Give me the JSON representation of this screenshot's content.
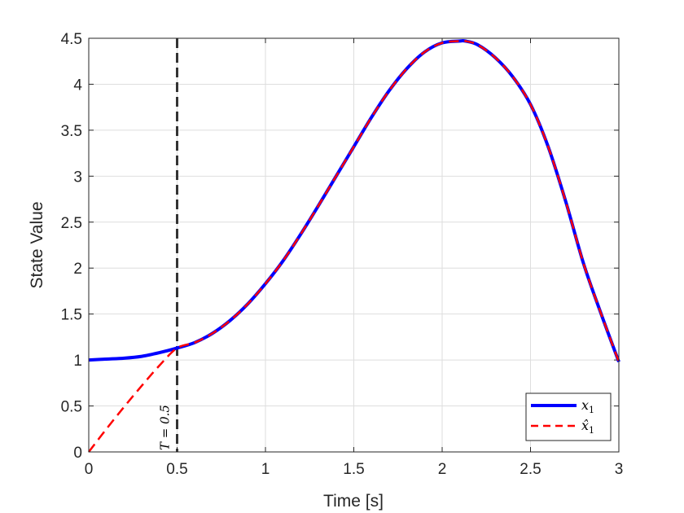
{
  "chart_data": {
    "type": "line",
    "xlabel": "Time [s]",
    "ylabel": "State Value",
    "xlim": [
      0,
      3
    ],
    "ylim": [
      0,
      4.5
    ],
    "xticks": [
      0,
      0.5,
      1,
      1.5,
      2,
      2.5,
      3
    ],
    "yticks": [
      0,
      0.5,
      1,
      1.5,
      2,
      2.5,
      3,
      3.5,
      4,
      4.5
    ],
    "xtick_labels": [
      "0",
      "0.5",
      "1",
      "1.5",
      "2",
      "2.5",
      "3"
    ],
    "ytick_labels": [
      "0",
      "0.5",
      "1",
      "1.5",
      "2",
      "2.5",
      "3",
      "3.5",
      "4",
      "4.5"
    ],
    "grid": true,
    "legend_position": "bottom-right",
    "series": [
      {
        "name": "x_1",
        "color": "#0000ff",
        "style": "solid",
        "x": [
          0,
          0.1,
          0.2,
          0.3,
          0.4,
          0.5,
          0.6,
          0.7,
          0.8,
          0.9,
          1.0,
          1.1,
          1.2,
          1.3,
          1.4,
          1.5,
          1.6,
          1.7,
          1.8,
          1.9,
          2.0,
          2.1,
          2.13,
          2.2,
          2.3,
          2.4,
          2.5,
          2.6,
          2.7,
          2.8,
          2.9,
          3.0
        ],
        "y": [
          1.0,
          1.01,
          1.02,
          1.04,
          1.08,
          1.13,
          1.19,
          1.29,
          1.43,
          1.61,
          1.83,
          2.08,
          2.37,
          2.68,
          3.0,
          3.32,
          3.64,
          3.93,
          4.17,
          4.35,
          4.45,
          4.47,
          4.47,
          4.43,
          4.29,
          4.08,
          3.78,
          3.32,
          2.72,
          2.05,
          1.5,
          0.98
        ]
      },
      {
        "name": "x̂_1",
        "color": "#ff0000",
        "style": "dashed",
        "x": [
          0,
          0.1,
          0.2,
          0.3,
          0.4,
          0.5,
          0.6,
          0.7,
          0.8,
          0.9,
          1.0,
          1.1,
          1.2,
          1.3,
          1.4,
          1.5,
          1.6,
          1.7,
          1.8,
          1.9,
          2.0,
          2.1,
          2.13,
          2.2,
          2.3,
          2.4,
          2.5,
          2.6,
          2.7,
          2.8,
          2.9,
          3.0
        ],
        "y": [
          0.0,
          0.25,
          0.49,
          0.72,
          0.94,
          1.13,
          1.19,
          1.29,
          1.43,
          1.61,
          1.83,
          2.08,
          2.37,
          2.68,
          3.0,
          3.32,
          3.64,
          3.93,
          4.17,
          4.35,
          4.45,
          4.47,
          4.47,
          4.43,
          4.29,
          4.08,
          3.78,
          3.32,
          2.72,
          2.05,
          1.5,
          0.98
        ]
      }
    ],
    "vline": {
      "x": 0.5,
      "color": "#333333",
      "style": "dashed"
    },
    "annotations": [
      {
        "text": "T = 0.5",
        "x": 0.5
      }
    ],
    "legend": [
      {
        "label": "x",
        "sub": "1",
        "hat": false,
        "color": "#0000ff",
        "style": "solid"
      },
      {
        "label": "x̂",
        "sub": "1",
        "hat": true,
        "color": "#ff0000",
        "style": "dashed"
      }
    ]
  }
}
